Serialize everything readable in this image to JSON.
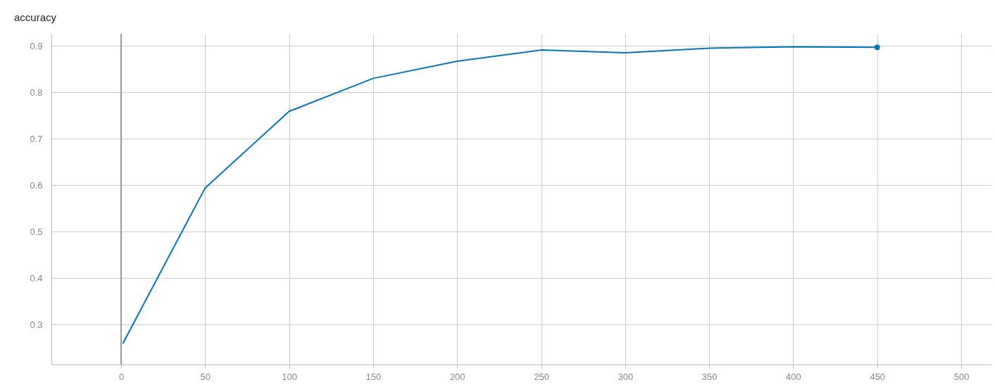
{
  "chart_data": {
    "type": "line",
    "title": "accuracy",
    "xlim": [
      -41.5,
      518
    ],
    "xticks": [
      0,
      50,
      100,
      150,
      200,
      250,
      300,
      350,
      400,
      450,
      500
    ],
    "ylim": [
      0.214,
      0.926
    ],
    "yticks": [
      0.3,
      0.4,
      0.5,
      0.6,
      0.7,
      0.8,
      0.9
    ],
    "grid": true,
    "line_style": "solid",
    "marker": "none",
    "series": [
      {
        "color": "#0077bb",
        "x": [
          1,
          50,
          100,
          150,
          200,
          250,
          300,
          350,
          400,
          450
        ],
        "values": [
          0.259,
          0.594,
          0.759,
          0.83,
          0.867,
          0.891,
          0.885,
          0.895,
          0.898,
          0.897
        ]
      },
      {
        "type": "scatter",
        "color": "#0077bb",
        "x": [
          450
        ],
        "values": [
          0.897
        ],
        "marker": "circle"
      }
    ],
    "ref_lines": [
      {
        "axis": "x",
        "value": 0,
        "color": "#999999"
      }
    ]
  }
}
